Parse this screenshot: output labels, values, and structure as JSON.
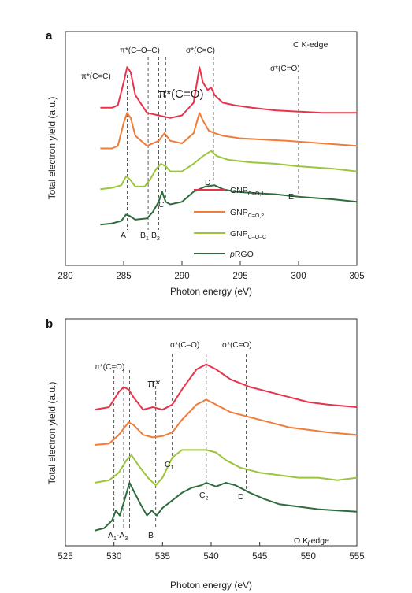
{
  "chart_data": [
    {
      "type": "line",
      "panel": "a",
      "edge_label": "C K-edge",
      "xlabel": "Photon energy (eV)",
      "ylabel": "Total electron yield (a.u.)",
      "xlim": [
        280,
        305
      ],
      "xticks": [
        280,
        285,
        290,
        295,
        300,
        305
      ],
      "series": [
        {
          "name": "GNP",
          "sub": "C=O,1",
          "color": "#e8334a",
          "points": [
            [
              283,
              50
            ],
            [
              284,
              50
            ],
            [
              284.5,
              51
            ],
            [
              285,
              60
            ],
            [
              285.3,
              66
            ],
            [
              285.6,
              64
            ],
            [
              286,
              55
            ],
            [
              287,
              48
            ],
            [
              288,
              47
            ],
            [
              289,
              46
            ],
            [
              290,
              47
            ],
            [
              291,
              52
            ],
            [
              291.5,
              66
            ],
            [
              291.8,
              60
            ],
            [
              292.2,
              57
            ],
            [
              292.5,
              58
            ],
            [
              292.8,
              55
            ],
            [
              293.5,
              52
            ],
            [
              294.5,
              51
            ],
            [
              296,
              50
            ],
            [
              298,
              49
            ],
            [
              300,
              48.5
            ],
            [
              302,
              48
            ],
            [
              305,
              48
            ]
          ]
        },
        {
          "name": "GNP",
          "sub": "C=O,2",
          "color": "#f07c3a",
          "points": [
            [
              283,
              34
            ],
            [
              284,
              34
            ],
            [
              284.5,
              35
            ],
            [
              285,
              44
            ],
            [
              285.3,
              48
            ],
            [
              285.6,
              46
            ],
            [
              286,
              39
            ],
            [
              287,
              35
            ],
            [
              288,
              37
            ],
            [
              288.5,
              40
            ],
            [
              289,
              37
            ],
            [
              290,
              36
            ],
            [
              291,
              40
            ],
            [
              291.5,
              48
            ],
            [
              291.8,
              45
            ],
            [
              292.3,
              41
            ],
            [
              292.8,
              40
            ],
            [
              293.5,
              39
            ],
            [
              295,
              38
            ],
            [
              297,
              37.5
            ],
            [
              299,
              37
            ],
            [
              302,
              36
            ],
            [
              305,
              35
            ]
          ]
        },
        {
          "name": "GNP",
          "sub": "C–O–C",
          "color": "#9ac53c",
          "points": [
            [
              283,
              18
            ],
            [
              284,
              18.5
            ],
            [
              284.8,
              19.5
            ],
            [
              285.2,
              23
            ],
            [
              285.5,
              22
            ],
            [
              286,
              19
            ],
            [
              286.8,
              19
            ],
            [
              287.3,
              22
            ],
            [
              287.8,
              26
            ],
            [
              288.2,
              28
            ],
            [
              288.6,
              27
            ],
            [
              289,
              25
            ],
            [
              290,
              25
            ],
            [
              291,
              28
            ],
            [
              291.8,
              31
            ],
            [
              292.5,
              33
            ],
            [
              293,
              31
            ],
            [
              294,
              29.5
            ],
            [
              296,
              28.5
            ],
            [
              298,
              28
            ],
            [
              300,
              27
            ],
            [
              303,
              26
            ],
            [
              305,
              25
            ]
          ]
        },
        {
          "name": "",
          "sub": "",
          "italic": "p",
          "rest": "RGO",
          "color": "#2e6b3e",
          "points": [
            [
              283,
              4
            ],
            [
              284,
              4.5
            ],
            [
              284.8,
              5.5
            ],
            [
              285.2,
              8
            ],
            [
              285.5,
              7.5
            ],
            [
              286,
              6
            ],
            [
              287,
              6.5
            ],
            [
              287.5,
              9
            ],
            [
              288,
              13
            ],
            [
              288.3,
              17
            ],
            [
              288.6,
              13
            ],
            [
              289,
              12
            ],
            [
              290,
              13
            ],
            [
              291,
              17
            ],
            [
              292,
              19
            ],
            [
              292.8,
              19.5
            ],
            [
              293.5,
              18
            ],
            [
              294.5,
              17
            ],
            [
              296,
              16.5
            ],
            [
              298,
              16
            ],
            [
              300,
              15
            ],
            [
              303,
              14
            ],
            [
              305,
              13
            ]
          ]
        }
      ],
      "vlines": [
        {
          "x": 285.3,
          "label": "A"
        },
        {
          "x": 287.1,
          "label": "B",
          "sub": "1"
        },
        {
          "x": 288.0,
          "label": "B",
          "sub": "2"
        },
        {
          "x": 288.6,
          "label": "C"
        },
        {
          "x": 292.7,
          "label": "D"
        },
        {
          "x": 300.0,
          "label": "E"
        }
      ],
      "annotations": [
        "π*(C=C)",
        "π*(C–O–C)",
        "π*(C=O)",
        "σ*(C=C)",
        "σ*(C=O)"
      ],
      "legend": {
        "placement": "lower-right"
      }
    },
    {
      "type": "line",
      "panel": "b",
      "edge_label": "O K-edge",
      "xlabel": "Photon energy (eV)",
      "ylabel": "Total electron yield (a.u.)",
      "xlim": [
        525,
        555
      ],
      "xticks": [
        525,
        530,
        535,
        540,
        545,
        550,
        555
      ],
      "series": [
        {
          "name": "GNP",
          "sub": "C=O,1",
          "color": "#e8334a",
          "points": [
            [
              528,
              50
            ],
            [
              529.5,
              51
            ],
            [
              530.5,
              57
            ],
            [
              531,
              59
            ],
            [
              531.5,
              58
            ],
            [
              532,
              55
            ],
            [
              533,
              50
            ],
            [
              534,
              51
            ],
            [
              535,
              50
            ],
            [
              536,
              52
            ],
            [
              537,
              58
            ],
            [
              538.5,
              66
            ],
            [
              539.5,
              68
            ],
            [
              540.5,
              66
            ],
            [
              542,
              62
            ],
            [
              544,
              59
            ],
            [
              546,
              57
            ],
            [
              548,
              55
            ],
            [
              550,
              53
            ],
            [
              552,
              52
            ],
            [
              555,
              51
            ]
          ]
        },
        {
          "name": "GNP",
          "sub": "C=O,2",
          "color": "#f07c3a",
          "points": [
            [
              528,
              36
            ],
            [
              529.5,
              36.5
            ],
            [
              530.5,
              40
            ],
            [
              531.5,
              45
            ],
            [
              532,
              44
            ],
            [
              533,
              40
            ],
            [
              534,
              39
            ],
            [
              535,
              39.5
            ],
            [
              536,
              41
            ],
            [
              537,
              46
            ],
            [
              538.5,
              52
            ],
            [
              539.5,
              54
            ],
            [
              540.5,
              52
            ],
            [
              542,
              49
            ],
            [
              544,
              47
            ],
            [
              546,
              45
            ],
            [
              548,
              43
            ],
            [
              550,
              42
            ],
            [
              552,
              41
            ],
            [
              555,
              40
            ]
          ]
        },
        {
          "name": "GNP",
          "sub": "C–O–C",
          "color": "#9ac53c",
          "points": [
            [
              528,
              21
            ],
            [
              529.5,
              22
            ],
            [
              530.5,
              25
            ],
            [
              531.3,
              30
            ],
            [
              531.8,
              32
            ],
            [
              532.5,
              28
            ],
            [
              533.5,
              23
            ],
            [
              534.3,
              20
            ],
            [
              535,
              23
            ],
            [
              536,
              31
            ],
            [
              537,
              34
            ],
            [
              538,
              34
            ],
            [
              539.5,
              34
            ],
            [
              540.5,
              33
            ],
            [
              541.5,
              30
            ],
            [
              543,
              27
            ],
            [
              545,
              25
            ],
            [
              547,
              24
            ],
            [
              549,
              23
            ],
            [
              551,
              23
            ],
            [
              553,
              22
            ],
            [
              555,
              23
            ]
          ]
        },
        {
          "name": "",
          "sub": "",
          "italic": "p",
          "rest": "RGO",
          "color": "#2e6b3e",
          "points": [
            [
              528,
              2
            ],
            [
              529,
              3
            ],
            [
              529.8,
              6
            ],
            [
              530.2,
              10
            ],
            [
              530.6,
              8
            ],
            [
              531,
              13
            ],
            [
              531.6,
              21
            ],
            [
              532,
              18
            ],
            [
              532.8,
              12
            ],
            [
              533.4,
              8
            ],
            [
              533.9,
              10
            ],
            [
              534.4,
              8
            ],
            [
              535,
              11
            ],
            [
              536,
              14
            ],
            [
              537,
              17
            ],
            [
              538,
              19
            ],
            [
              539,
              20
            ],
            [
              539.5,
              21
            ],
            [
              540.5,
              19.5
            ],
            [
              541.5,
              21
            ],
            [
              542.5,
              20
            ],
            [
              544,
              17
            ],
            [
              545.5,
              14.5
            ],
            [
              547,
              12.5
            ],
            [
              549,
              11.5
            ],
            [
              551,
              10.5
            ],
            [
              553,
              10
            ],
            [
              555,
              9.5
            ]
          ]
        }
      ],
      "vlines": [
        {
          "x": 530.0,
          "label": ""
        },
        {
          "x": 531.0,
          "label": ""
        },
        {
          "x": 531.6,
          "label": ""
        },
        {
          "x": 534.3,
          "label": "B"
        },
        {
          "x": 536.0,
          "label": "C",
          "sub": "1"
        },
        {
          "x": 539.5,
          "label": "C",
          "sub": "2"
        },
        {
          "x": 543.6,
          "label": "D"
        }
      ],
      "range_label": {
        "a": "A",
        "sub1": "1",
        "dash": "-A",
        "sub2": "3"
      },
      "annotations": [
        "π*(C=O)",
        "π*",
        "σ*(C–O)",
        "σ*(C=O)"
      ]
    }
  ]
}
